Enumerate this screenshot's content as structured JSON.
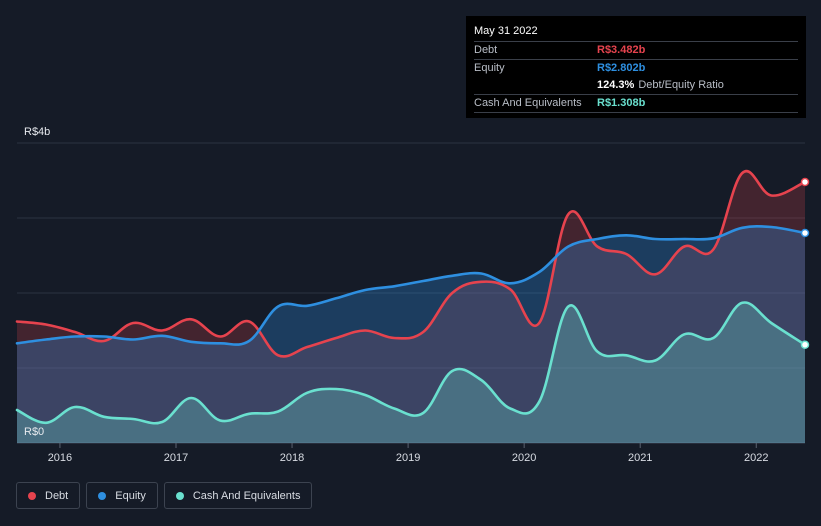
{
  "chart_data": {
    "type": "area",
    "ylabel_top": "R$4b",
    "ylabel_bottom": "R$0",
    "ylim": [
      0,
      4
    ],
    "xlim": [
      2015.63,
      2022.42
    ],
    "x_ticks": [
      "2016",
      "2017",
      "2018",
      "2019",
      "2020",
      "2021",
      "2022"
    ],
    "x_tick_values": [
      2016,
      2017,
      2018,
      2019,
      2020,
      2021,
      2022
    ],
    "series": [
      {
        "name": "Debt",
        "color": "#e6434e",
        "x": [
          2015.63,
          2015.88,
          2016.13,
          2016.38,
          2016.63,
          2016.88,
          2017.13,
          2017.38,
          2017.63,
          2017.88,
          2018.13,
          2018.38,
          2018.63,
          2018.88,
          2019.13,
          2019.38,
          2019.63,
          2019.88,
          2020.13,
          2020.38,
          2020.63,
          2020.88,
          2021.13,
          2021.38,
          2021.63,
          2021.88,
          2022.13,
          2022.42
        ],
        "values": [
          1.62,
          1.58,
          1.48,
          1.36,
          1.6,
          1.5,
          1.65,
          1.42,
          1.62,
          1.17,
          1.28,
          1.4,
          1.5,
          1.4,
          1.48,
          2.0,
          2.15,
          2.05,
          1.6,
          3.05,
          2.62,
          2.52,
          2.25,
          2.62,
          2.58,
          3.6,
          3.3,
          3.48
        ]
      },
      {
        "name": "Equity",
        "color": "#2e8fe0",
        "x": [
          2015.63,
          2015.88,
          2016.13,
          2016.38,
          2016.63,
          2016.88,
          2017.13,
          2017.38,
          2017.63,
          2017.88,
          2018.13,
          2018.38,
          2018.63,
          2018.88,
          2019.13,
          2019.38,
          2019.63,
          2019.88,
          2020.13,
          2020.38,
          2020.63,
          2020.88,
          2021.13,
          2021.38,
          2021.63,
          2021.88,
          2022.13,
          2022.42
        ],
        "values": [
          1.33,
          1.38,
          1.42,
          1.42,
          1.38,
          1.43,
          1.35,
          1.33,
          1.36,
          1.82,
          1.83,
          1.93,
          2.04,
          2.09,
          2.16,
          2.23,
          2.26,
          2.13,
          2.28,
          2.62,
          2.72,
          2.77,
          2.72,
          2.72,
          2.73,
          2.87,
          2.88,
          2.8
        ]
      },
      {
        "name": "Cash And Equivalents",
        "color": "#6ae0cf",
        "x": [
          2015.63,
          2015.88,
          2016.13,
          2016.38,
          2016.63,
          2016.88,
          2017.13,
          2017.38,
          2017.63,
          2017.88,
          2018.13,
          2018.38,
          2018.63,
          2018.88,
          2019.13,
          2019.38,
          2019.63,
          2019.88,
          2020.13,
          2020.38,
          2020.63,
          2020.88,
          2021.13,
          2021.38,
          2021.63,
          2021.88,
          2022.13,
          2022.42
        ],
        "values": [
          0.44,
          0.27,
          0.48,
          0.35,
          0.32,
          0.28,
          0.6,
          0.3,
          0.39,
          0.42,
          0.67,
          0.72,
          0.64,
          0.46,
          0.4,
          0.96,
          0.84,
          0.46,
          0.55,
          1.82,
          1.22,
          1.17,
          1.1,
          1.45,
          1.4,
          1.87,
          1.6,
          1.31
        ]
      }
    ]
  },
  "tooltip": {
    "date": "May 31 2022",
    "debt_label": "Debt",
    "debt_value": "R$3.482b",
    "equity_label": "Equity",
    "equity_value": "R$2.802b",
    "ratio_value": "124.3%",
    "ratio_label": "Debt/Equity Ratio",
    "cash_label": "Cash And Equivalents",
    "cash_value": "R$1.308b"
  },
  "legend": {
    "debt": "Debt",
    "equity": "Equity",
    "cash": "Cash And Equivalents"
  },
  "colors": {
    "debt": "#e6434e",
    "equity": "#2e8fe0",
    "cash": "#6ae0cf"
  }
}
